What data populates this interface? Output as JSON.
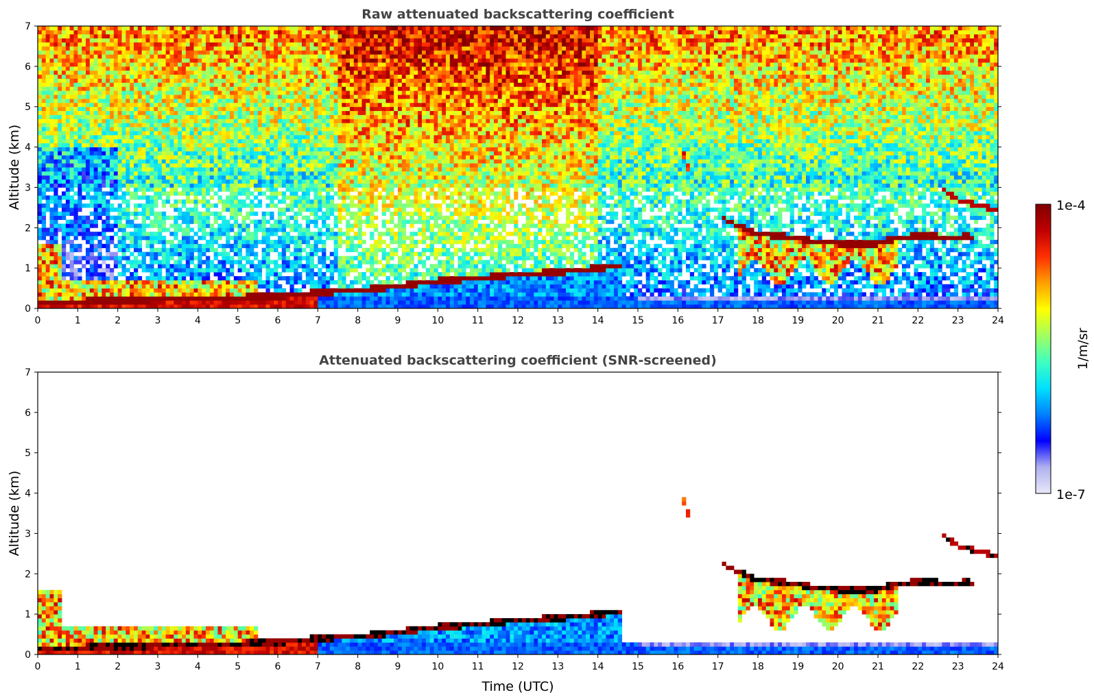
{
  "chart_data": [
    {
      "type": "heatmap",
      "title": "Raw attenuated backscattering coefficient",
      "xlabel": "",
      "ylabel": "Altitude (km)",
      "xlim": [
        0,
        24
      ],
      "ylim": [
        0,
        7
      ],
      "x_ticks": [
        "0",
        "1",
        "2",
        "3",
        "4",
        "5",
        "6",
        "7",
        "8",
        "9",
        "10",
        "11",
        "12",
        "13",
        "14",
        "15",
        "16",
        "17",
        "18",
        "19",
        "20",
        "21",
        "22",
        "23",
        "24"
      ],
      "y_ticks": [
        "0",
        "1",
        "2",
        "3",
        "4",
        "5",
        "6",
        "7"
      ],
      "features": {
        "cloud_base_layer": [
          [
            0.0,
            0.15
          ],
          [
            2,
            0.2
          ],
          [
            4,
            0.25
          ],
          [
            6,
            0.3
          ],
          [
            7,
            0.4
          ],
          [
            8,
            0.45
          ],
          [
            9,
            0.55
          ],
          [
            10,
            0.68
          ],
          [
            11,
            0.75
          ],
          [
            12,
            0.85
          ],
          [
            13,
            0.9
          ],
          [
            14,
            1.0
          ],
          [
            14.6,
            1.05
          ]
        ],
        "upper_cloud_layer": [
          [
            17.1,
            2.25
          ],
          [
            17.5,
            2.05
          ],
          [
            18,
            1.85
          ],
          [
            18.5,
            1.8
          ],
          [
            19,
            1.75
          ],
          [
            19.5,
            1.65
          ],
          [
            20,
            1.62
          ],
          [
            20.5,
            1.6
          ],
          [
            21,
            1.62
          ],
          [
            21.5,
            1.75
          ],
          [
            22,
            1.8
          ],
          [
            22.5,
            1.78
          ],
          [
            23.0,
            1.78
          ],
          [
            23.4,
            1.78
          ]
        ],
        "high_cloud": [
          [
            22.6,
            2.95
          ],
          [
            23,
            2.7
          ],
          [
            23.5,
            2.55
          ],
          [
            24,
            2.45
          ]
        ],
        "cirrus_16": [
          [
            16.1,
            4.0
          ],
          [
            16.3,
            3.3
          ]
        ]
      }
    },
    {
      "type": "heatmap",
      "title": "Attenuated backscattering coefficient (SNR-screened)",
      "xlabel": "Time (UTC)",
      "ylabel": "Altitude (km)",
      "xlim": [
        0,
        24
      ],
      "ylim": [
        0,
        7
      ],
      "x_ticks": [
        "0",
        "1",
        "2",
        "3",
        "4",
        "5",
        "6",
        "7",
        "8",
        "9",
        "10",
        "11",
        "12",
        "13",
        "14",
        "15",
        "16",
        "17",
        "18",
        "19",
        "20",
        "21",
        "22",
        "23",
        "24"
      ],
      "y_ticks": [
        "0",
        "1",
        "2",
        "3",
        "4",
        "5",
        "6",
        "7"
      ],
      "screened": true
    }
  ],
  "colorbar": {
    "label": "1/m/sr",
    "max_label": "1e-4",
    "min_label": "1e-7",
    "scale": "log",
    "colormap": [
      "#e8e8f8",
      "#b0b0f0",
      "#0000ff",
      "#0080ff",
      "#00e0ff",
      "#40ffc0",
      "#a0ff60",
      "#ffff00",
      "#ffa000",
      "#ff3000",
      "#c00000",
      "#800000"
    ]
  }
}
